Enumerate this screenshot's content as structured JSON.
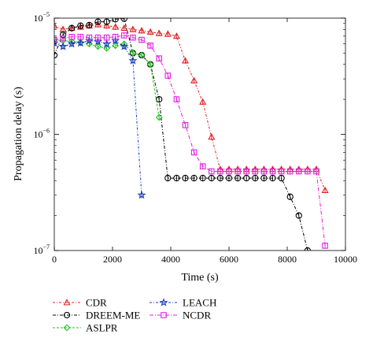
{
  "chart_data": {
    "type": "line",
    "xlabel": "Time (s)",
    "ylabel": "Propagation delay (s)",
    "xlim": [
      0,
      10000
    ],
    "ylim": [
      1e-07,
      1e-05
    ],
    "yscale": "log",
    "grid": false,
    "legend_position": "bottom",
    "x_ticks": [
      0,
      2000,
      4000,
      6000,
      8000,
      10000
    ],
    "x_tick_labels": [
      "0",
      "2000",
      "4000",
      "6000",
      "8000",
      "10000"
    ],
    "y_ticks": [
      1e-07,
      1e-06,
      1e-05
    ],
    "y_tick_labels": [
      {
        "base": "10",
        "exp": "−7"
      },
      {
        "base": "10",
        "exp": "−6"
      },
      {
        "base": "10",
        "exp": "−5"
      }
    ],
    "series": [
      {
        "name": "CDR",
        "color": "#e02020",
        "marker": "triangle",
        "dash": "3,2,1,2",
        "x": [
          0,
          300,
          600,
          900,
          1200,
          1500,
          1800,
          2100,
          2400,
          2700,
          3000,
          3300,
          3600,
          3900,
          4200,
          4500,
          4800,
          5100,
          5400,
          5700,
          6000,
          6300,
          6600,
          6900,
          7200,
          7500,
          7800,
          8100,
          8400,
          8700,
          9000,
          9300
        ],
        "y": [
          8.6e-06,
          8e-06,
          8.2e-06,
          8.4e-06,
          8.6e-06,
          8.8e-06,
          8.6e-06,
          8.4e-06,
          8.2e-06,
          8e-06,
          7.8e-06,
          7.6e-06,
          7.4e-06,
          7.3e-06,
          7e-06,
          4.3e-06,
          2.9e-06,
          1.9e-06,
          9.5e-07,
          5e-07,
          5e-07,
          5e-07,
          5e-07,
          5e-07,
          5e-07,
          5e-07,
          5e-07,
          5e-07,
          5e-07,
          5e-07,
          5e-07,
          3.3e-07
        ]
      },
      {
        "name": "DREEM-ME",
        "color": "#000000",
        "marker": "circle",
        "dash": "4,2,1,2",
        "x": [
          0,
          300,
          600,
          900,
          1200,
          1500,
          1800,
          2100,
          2400,
          2700,
          3000,
          3300,
          3600,
          3900,
          4200,
          4500,
          4800,
          5100,
          5400,
          5700,
          6000,
          6300,
          6600,
          6900,
          7200,
          7500,
          7800,
          8100,
          8400,
          8700
        ],
        "y": [
          4.8e-06,
          7.2e-06,
          8.2e-06,
          8.6e-06,
          8.7e-06,
          9.3e-06,
          9.3e-06,
          9.8e-06,
          9.9e-06,
          5e-06,
          4.8e-06,
          4e-06,
          2e-06,
          4.2e-07,
          4.2e-07,
          4.2e-07,
          4.2e-07,
          4.2e-07,
          4.2e-07,
          4.2e-07,
          4.2e-07,
          4.2e-07,
          4.2e-07,
          4.2e-07,
          4.2e-07,
          4.2e-07,
          4.2e-07,
          2.9e-07,
          2e-07,
          1e-07
        ]
      },
      {
        "name": "ASLPR",
        "color": "#20c020",
        "marker": "diamond",
        "dash": "3,2",
        "x": [
          0,
          300,
          600,
          900,
          1200,
          1500,
          1800,
          2100,
          2400,
          2700,
          3000,
          3300,
          3600
        ],
        "y": [
          6.5e-06,
          6.4e-06,
          6.3e-06,
          6.2e-06,
          6e-06,
          5.7e-06,
          5.5e-06,
          5.8e-06,
          6e-06,
          5e-06,
          4.8e-06,
          4e-06,
          1.4e-06
        ]
      },
      {
        "name": "LEACH",
        "color": "#1a3ab8",
        "marker": "star",
        "dash": "3,2,1,2",
        "x": [
          0,
          300,
          600,
          900,
          1200,
          1500,
          1800,
          2100,
          2400,
          2700,
          3000
        ],
        "y": [
          6.1e-06,
          5.7e-06,
          6e-06,
          6.1e-06,
          6.4e-06,
          6.3e-06,
          6e-06,
          6.4e-06,
          5.7e-06,
          4.3e-06,
          3e-07
        ]
      },
      {
        "name": "NCDR",
        "color": "#e020e0",
        "marker": "square",
        "dash": "5,2,1,2",
        "x": [
          0,
          300,
          600,
          900,
          1200,
          1500,
          1800,
          2100,
          2400,
          2700,
          3000,
          3300,
          3600,
          3900,
          4200,
          4500,
          4800,
          5100,
          5400,
          5700,
          6000,
          6300,
          6600,
          6900,
          7200,
          7500,
          7800,
          8100,
          8400,
          8700,
          9000,
          9300
        ],
        "y": [
          6.5e-06,
          6.7e-06,
          6.9e-06,
          6.9e-06,
          6.8e-06,
          6.8e-06,
          6.8e-06,
          6.9e-06,
          7.1e-06,
          6.8e-06,
          6.5e-06,
          5.8e-06,
          4.5e-06,
          3.2e-06,
          2e-06,
          1.2e-06,
          7e-07,
          5.3e-07,
          4.8e-07,
          4.8e-07,
          4.8e-07,
          4.8e-07,
          4.8e-07,
          4.8e-07,
          4.8e-07,
          4.8e-07,
          4.8e-07,
          4.8e-07,
          4.8e-07,
          4.8e-07,
          4.8e-07,
          1.1e-07
        ]
      }
    ]
  }
}
